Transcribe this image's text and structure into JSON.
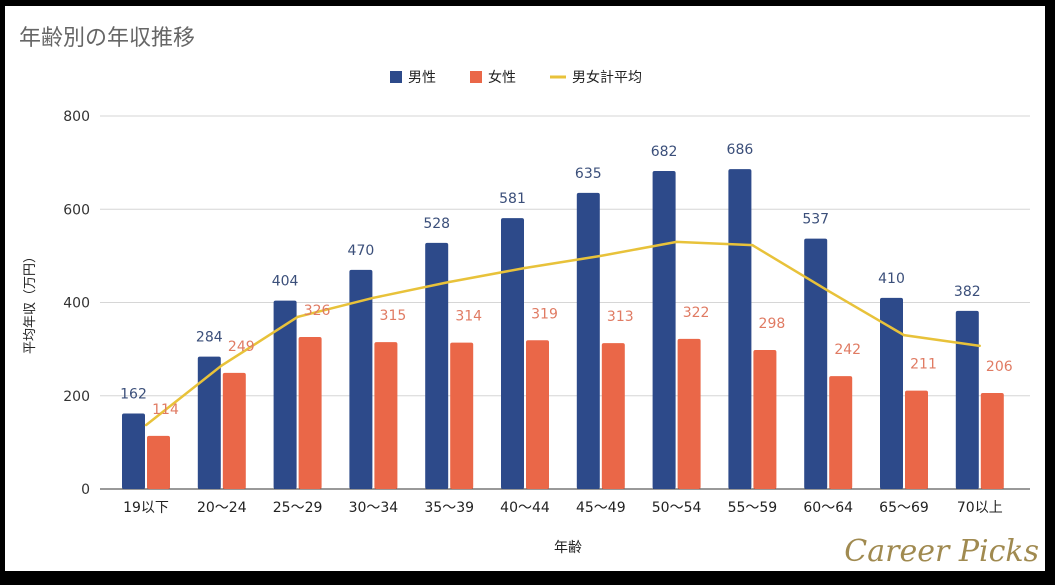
{
  "chart_data": {
    "type": "bar",
    "title": "年齢別の年収推移",
    "xlabel": "年齢",
    "ylabel": "平均年収（万円）",
    "ylim": [
      0,
      800
    ],
    "yticks": [
      0,
      200,
      400,
      600,
      800
    ],
    "grid": true,
    "legend_position": "top",
    "categories": [
      "19以下",
      "20〜24",
      "25〜29",
      "30〜34",
      "35〜39",
      "40〜44",
      "45〜49",
      "50〜54",
      "55〜59",
      "60〜64",
      "65〜69",
      "70以上"
    ],
    "series": [
      {
        "name": "男性",
        "type": "bar",
        "color": "#2d4a8a",
        "label_color": "#3b4f7a",
        "values": [
          162,
          284,
          404,
          470,
          528,
          581,
          635,
          682,
          686,
          537,
          410,
          382
        ]
      },
      {
        "name": "女性",
        "type": "bar",
        "color": "#ea6748",
        "label_color": "#e07b63",
        "values": [
          114,
          249,
          326,
          315,
          314,
          319,
          313,
          322,
          298,
          242,
          211,
          206
        ]
      },
      {
        "name": "男女計平均",
        "type": "line",
        "color": "#e8c23a",
        "values": [
          137,
          265,
          369,
          410,
          444,
          474,
          500,
          530,
          523,
          425,
          330,
          307
        ]
      }
    ]
  },
  "watermark": "Career Picks"
}
